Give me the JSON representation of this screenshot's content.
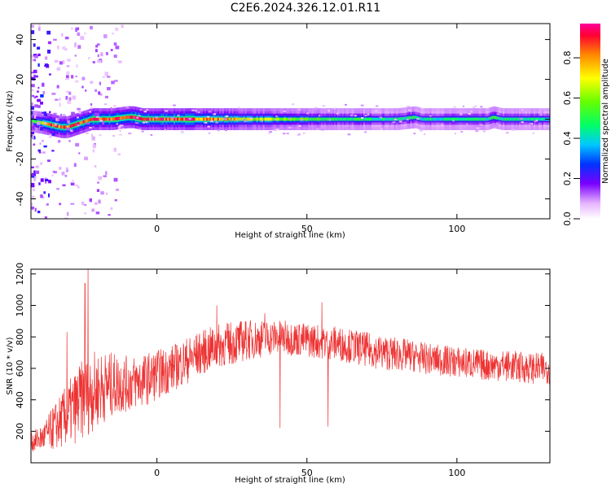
{
  "title": "C2E6.2024.326.12.01.R11",
  "chart_data": [
    {
      "type": "heatmap",
      "xlabel": "Height of straight line (km)",
      "ylabel": "Frequency (Hz)",
      "xlim": [
        -42,
        131
      ],
      "ylim": [
        -50,
        48
      ],
      "xticks": [
        0,
        50,
        100
      ],
      "yticks": [
        -40,
        -20,
        0,
        20,
        40
      ],
      "colorbar": {
        "label": "Normalized spectral amplitude",
        "range": [
          0,
          0.97
        ],
        "ticks": [
          0.0,
          0.2,
          0.4,
          0.6,
          0.8
        ]
      },
      "ridge": {
        "x": [
          -42,
          -38,
          -35,
          -32,
          -30,
          -28,
          -26,
          -24,
          -22,
          -20,
          -15,
          -10,
          -8,
          -5,
          -2,
          0,
          5,
          10,
          20,
          40,
          60,
          80,
          86,
          88,
          90,
          100,
          110,
          112,
          115,
          125,
          131
        ],
        "freq": [
          -1,
          -2,
          -3,
          -4,
          -4,
          -3,
          -2,
          -1,
          0,
          0,
          0,
          1,
          1,
          0,
          0,
          0,
          0,
          0,
          0,
          0,
          0,
          0,
          1,
          0,
          0,
          0,
          0,
          1,
          0,
          0,
          0
        ],
        "amplitude": [
          0.5,
          0.7,
          0.9,
          0.85,
          0.8,
          0.9,
          0.85,
          0.9,
          0.95,
          0.9,
          0.9,
          0.9,
          0.95,
          0.9,
          0.85,
          0.92,
          0.92,
          0.9,
          0.8,
          0.6,
          0.5,
          0.45,
          0.5,
          0.45,
          0.45,
          0.45,
          0.45,
          0.5,
          0.45,
          0.45,
          0.45
        ]
      }
    },
    {
      "type": "line",
      "xlabel": "Height of straight line (km)",
      "ylabel": "SNR (10 * v/v)",
      "xlim": [
        -42,
        131
      ],
      "ylim": [
        0,
        1230
      ],
      "xticks": [
        0,
        50,
        100
      ],
      "yticks": [
        200,
        400,
        600,
        800,
        1000,
        1200
      ],
      "series": [
        {
          "color": "#ee3333",
          "x": [
            -42,
            -38,
            -34,
            -30,
            -26,
            -22,
            -18,
            -14,
            -10,
            -5,
            0,
            5,
            10,
            15,
            20,
            25,
            30,
            35,
            40,
            45,
            50,
            55,
            60,
            65,
            70,
            75,
            80,
            85,
            90,
            95,
            100,
            105,
            110,
            115,
            120,
            125,
            131
          ],
          "y": [
            130,
            160,
            230,
            300,
            380,
            450,
            480,
            500,
            500,
            520,
            560,
            600,
            650,
            700,
            740,
            760,
            780,
            790,
            800,
            790,
            780,
            770,
            760,
            740,
            720,
            700,
            690,
            680,
            660,
            650,
            640,
            630,
            620,
            620,
            610,
            600,
            600
          ],
          "spread": [
            60,
            90,
            150,
            200,
            250,
            260,
            230,
            200,
            180,
            170,
            160,
            150,
            150,
            140,
            140,
            140,
            130,
            120,
            110,
            110,
            110,
            110,
            110,
            110,
            110,
            110,
            110,
            100,
            100,
            100,
            100,
            100,
            100,
            100,
            100,
            100,
            100
          ],
          "spikes": [
            {
              "x": -23,
              "y": 1230
            },
            {
              "x": -24,
              "y": 1140
            },
            {
              "x": -30,
              "y": 830
            },
            {
              "x": 20,
              "y": 1000
            },
            {
              "x": 55,
              "y": 1020
            },
            {
              "x": 36,
              "y": 950
            },
            {
              "x": 41,
              "y": 220
            },
            {
              "x": 57,
              "y": 230
            }
          ]
        }
      ]
    }
  ]
}
